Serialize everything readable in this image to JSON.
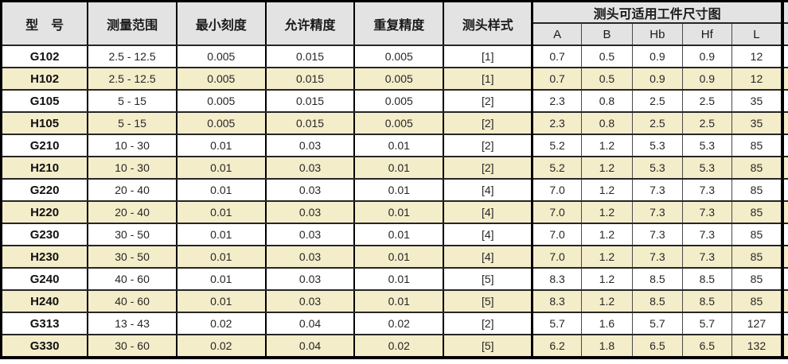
{
  "colors": {
    "header_bg": "#e3e3e3",
    "stripe_bg": "#f4edca",
    "row_bg": "#ffffff",
    "border_dark": "#000000",
    "border_light": "#4a4a4a"
  },
  "chart_data": {
    "type": "table",
    "columns": [
      "型　号",
      "测量范围",
      "最小刻度",
      "允许精度",
      "重复精度",
      "测头样式",
      "A",
      "B",
      "Hb",
      "Hf",
      "L"
    ],
    "group_header": {
      "label": "测头可适用工件尺寸图",
      "spans": [
        "A",
        "B",
        "Hb",
        "Hf",
        "L"
      ]
    },
    "rows": [
      [
        "G102",
        "2.5 - 12.5",
        "0.005",
        "0.015",
        "0.005",
        "[1]",
        "0.7",
        "0.5",
        "0.9",
        "0.9",
        "12"
      ],
      [
        "H102",
        "2.5 - 12.5",
        "0.005",
        "0.015",
        "0.005",
        "[1]",
        "0.7",
        "0.5",
        "0.9",
        "0.9",
        "12"
      ],
      [
        "G105",
        "5 - 15",
        "0.005",
        "0.015",
        "0.005",
        "[2]",
        "2.3",
        "0.8",
        "2.5",
        "2.5",
        "35"
      ],
      [
        "H105",
        "5 - 15",
        "0.005",
        "0.015",
        "0.005",
        "[2]",
        "2.3",
        "0.8",
        "2.5",
        "2.5",
        "35"
      ],
      [
        "G210",
        "10 - 30",
        "0.01",
        "0.03",
        "0.01",
        "[2]",
        "5.2",
        "1.2",
        "5.3",
        "5.3",
        "85"
      ],
      [
        "H210",
        "10 - 30",
        "0.01",
        "0.03",
        "0.01",
        "[2]",
        "5.2",
        "1.2",
        "5.3",
        "5.3",
        "85"
      ],
      [
        "G220",
        "20 - 40",
        "0.01",
        "0.03",
        "0.01",
        "[4]",
        "7.0",
        "1.2",
        "7.3",
        "7.3",
        "85"
      ],
      [
        "H220",
        "20 - 40",
        "0.01",
        "0.03",
        "0.01",
        "[4]",
        "7.0",
        "1.2",
        "7.3",
        "7.3",
        "85"
      ],
      [
        "G230",
        "30 - 50",
        "0.01",
        "0.03",
        "0.01",
        "[4]",
        "7.0",
        "1.2",
        "7.3",
        "7.3",
        "85"
      ],
      [
        "H230",
        "30 - 50",
        "0.01",
        "0.03",
        "0.01",
        "[4]",
        "7.0",
        "1.2",
        "7.3",
        "7.3",
        "85"
      ],
      [
        "G240",
        "40 - 60",
        "0.01",
        "0.03",
        "0.01",
        "[5]",
        "8.3",
        "1.2",
        "8.5",
        "8.5",
        "85"
      ],
      [
        "H240",
        "40 - 60",
        "0.01",
        "0.03",
        "0.01",
        "[5]",
        "8.3",
        "1.2",
        "8.5",
        "8.5",
        "85"
      ],
      [
        "G313",
        "13 - 43",
        "0.02",
        "0.04",
        "0.02",
        "[2]",
        "5.7",
        "1.6",
        "5.7",
        "5.7",
        "127"
      ],
      [
        "G330",
        "30 - 60",
        "0.02",
        "0.04",
        "0.02",
        "[5]",
        "6.2",
        "1.8",
        "6.5",
        "6.5",
        "132"
      ]
    ]
  }
}
